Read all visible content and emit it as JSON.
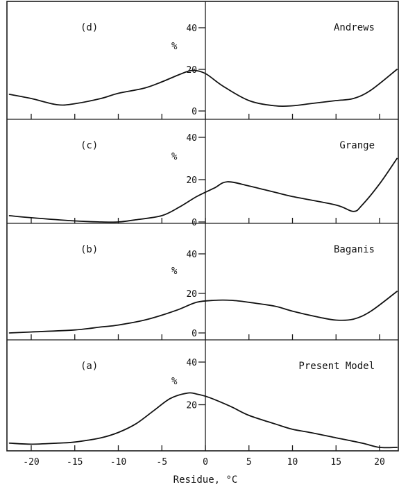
{
  "chart_data": [
    {
      "type": "line",
      "panel_label": "(d)",
      "series_label": "Andrews",
      "ylabel": "%",
      "yticks": [
        0,
        20,
        40
      ],
      "ylim": [
        0,
        50
      ],
      "x": [
        -22.5,
        -20,
        -17,
        -15,
        -12,
        -10,
        -7,
        -5,
        -3,
        -1.5,
        0,
        2,
        5,
        8,
        10,
        12,
        15,
        17,
        19,
        22
      ],
      "values": [
        8,
        6,
        3,
        3.5,
        6,
        8.5,
        11,
        14,
        17.5,
        19.5,
        18,
        12,
        5,
        2.5,
        2.5,
        3.5,
        5,
        6,
        10,
        20
      ]
    },
    {
      "type": "line",
      "panel_label": "(c)",
      "series_label": "Grange",
      "ylabel": "%",
      "yticks": [
        0,
        20,
        40
      ],
      "ylim": [
        0,
        50
      ],
      "x": [
        -22.5,
        -20,
        -15,
        -12,
        -10,
        -8,
        -5,
        -3,
        -1,
        1,
        2.5,
        5,
        8,
        10,
        15,
        17,
        18,
        20,
        22
      ],
      "values": [
        3,
        2,
        0.5,
        0,
        0,
        1,
        3,
        7,
        12,
        16,
        19,
        17,
        14,
        12,
        8,
        5,
        8,
        18,
        30
      ]
    },
    {
      "type": "line",
      "panel_label": "(b)",
      "series_label": "Baganis",
      "ylabel": "%",
      "yticks": [
        0,
        20,
        40
      ],
      "ylim": [
        0,
        50
      ],
      "x": [
        -22.5,
        -20,
        -15,
        -12,
        -10,
        -7,
        -5,
        -3,
        -1,
        1,
        3,
        5,
        8,
        10,
        13,
        15,
        17,
        19,
        22
      ],
      "values": [
        0,
        0.5,
        1.5,
        3,
        4,
        6.5,
        9,
        12,
        15.5,
        16.5,
        16.5,
        15.5,
        13.5,
        11,
        8,
        6.5,
        7,
        11,
        21
      ]
    },
    {
      "type": "line",
      "panel_label": "(a)",
      "series_label": "Present Model",
      "ylabel": "%",
      "yticks": [
        20,
        40
      ],
      "ylim": [
        0,
        50
      ],
      "x": [
        -22.5,
        -20,
        -17,
        -15,
        -12,
        -10,
        -8,
        -6,
        -4,
        -2,
        -1,
        0,
        1,
        3,
        5,
        8,
        10,
        12,
        15,
        18,
        20,
        22
      ],
      "values": [
        2,
        1.5,
        2,
        2.5,
        4.5,
        7,
        11,
        17,
        23,
        25.5,
        25,
        24,
        22.5,
        19,
        15,
        11,
        8.5,
        7,
        4.5,
        2,
        0,
        0
      ]
    }
  ],
  "xaxis": {
    "title": "Residue, °C",
    "xlim": [
      -22.5,
      22
    ],
    "tick_values": [
      -20,
      -15,
      -10,
      -5,
      0,
      5,
      10,
      15,
      20
    ],
    "tick_labels": [
      "-20",
      "-15",
      "-10",
      "-5",
      "0",
      "5",
      "10",
      "15",
      "20"
    ]
  }
}
